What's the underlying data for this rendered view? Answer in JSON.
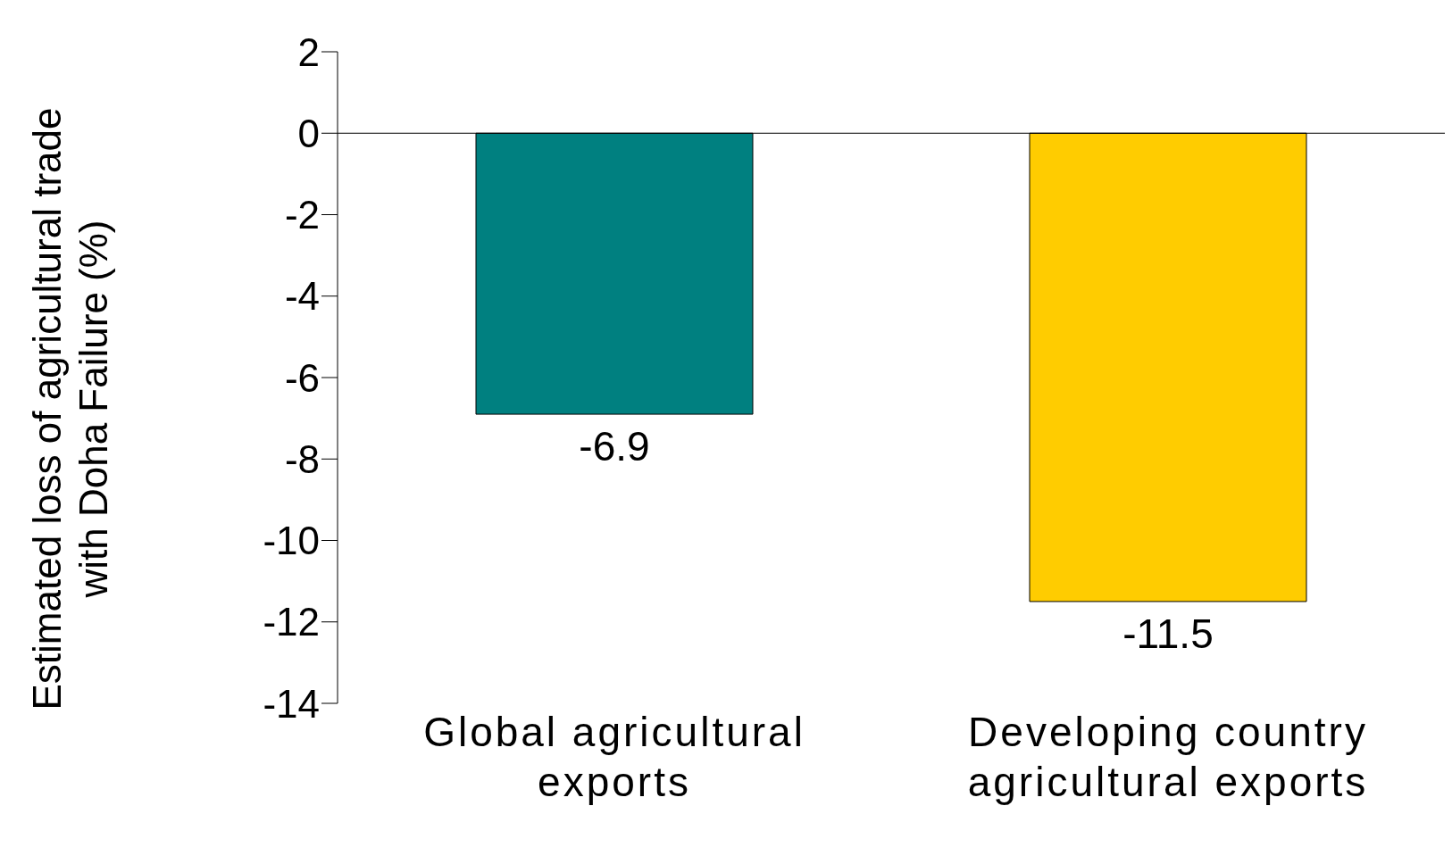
{
  "chart_data": {
    "type": "bar",
    "ylabel": "Estimated loss of agricultural trade with Doha Failure (%)",
    "categories": [
      "Global agricultural exports",
      "Developing country agricultural exports"
    ],
    "values": [
      -6.9,
      -11.5
    ],
    "colors": [
      "#008080",
      "#ffcc00"
    ],
    "ylim": [
      -14,
      2
    ],
    "yticks": [
      -14,
      -12,
      -10,
      -8,
      -6,
      -4,
      -2,
      0,
      2
    ],
    "data_labels": true
  }
}
